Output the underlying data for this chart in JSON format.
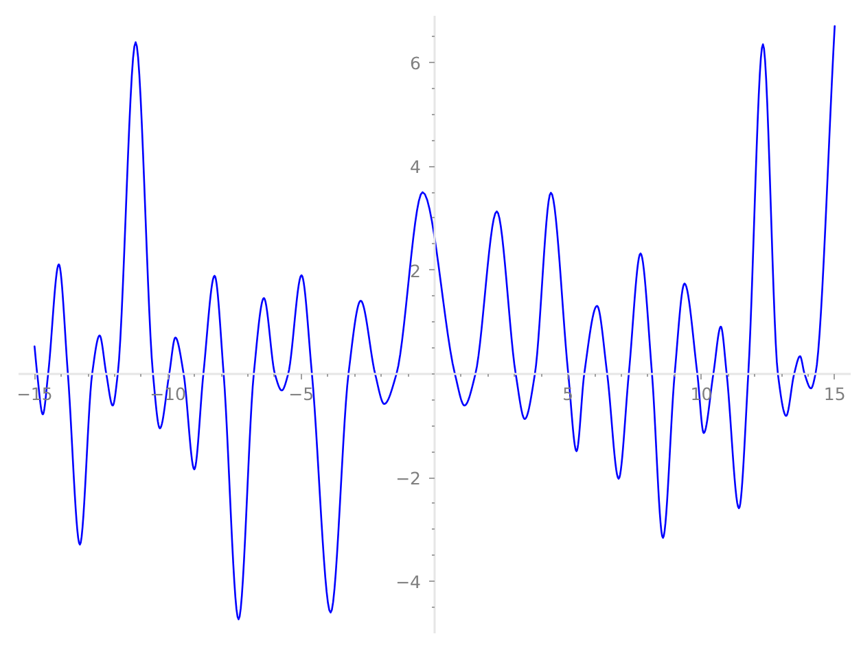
{
  "chart_data": {
    "type": "line",
    "xlim": [
      -15.6,
      15.6
    ],
    "ylim": [
      -5,
      6.9
    ],
    "xticks": [
      {
        "value": -15,
        "label": "−15"
      },
      {
        "value": -14,
        "label": null
      },
      {
        "value": -13,
        "label": null
      },
      {
        "value": -12,
        "label": null
      },
      {
        "value": -11,
        "label": null
      },
      {
        "value": -10,
        "label": "−10"
      },
      {
        "value": -9,
        "label": null
      },
      {
        "value": -8,
        "label": null
      },
      {
        "value": -7,
        "label": null
      },
      {
        "value": -6,
        "label": null
      },
      {
        "value": -5,
        "label": "−5"
      },
      {
        "value": -4,
        "label": null
      },
      {
        "value": -3,
        "label": null
      },
      {
        "value": -2,
        "label": null
      },
      {
        "value": -1,
        "label": null
      },
      {
        "value": 0,
        "label": null
      },
      {
        "value": 1,
        "label": null
      },
      {
        "value": 2,
        "label": null
      },
      {
        "value": 3,
        "label": null
      },
      {
        "value": 4,
        "label": null
      },
      5,
      {
        "value": 6,
        "label": null
      },
      {
        "value": 7,
        "label": null
      },
      {
        "value": 8,
        "label": null
      },
      {
        "value": 9,
        "label": null
      },
      10,
      {
        "value": 11,
        "label": null
      },
      {
        "value": 12,
        "label": null
      },
      {
        "value": 13,
        "label": null
      },
      {
        "value": 14,
        "label": null
      },
      15
    ],
    "yticks": [
      {
        "value": -4.5,
        "label": null
      },
      {
        "value": -4,
        "label": "−4"
      },
      {
        "value": -3.5,
        "label": null
      },
      {
        "value": -3,
        "label": null
      },
      {
        "value": -2.5,
        "label": null
      },
      {
        "value": -2,
        "label": "−2"
      },
      {
        "value": -1.5,
        "label": null
      },
      {
        "value": -1,
        "label": null
      },
      {
        "value": -0.5,
        "label": null
      },
      {
        "value": 0,
        "label": null
      },
      {
        "value": 0.5,
        "label": null
      },
      {
        "value": 1,
        "label": null
      },
      {
        "value": 1.5,
        "label": null
      },
      2,
      {
        "value": 2.5,
        "label": null
      },
      {
        "value": 3,
        "label": null
      },
      {
        "value": 3.5,
        "label": null
      },
      4,
      {
        "value": 4.5,
        "label": null
      },
      {
        "value": 5,
        "label": null
      },
      {
        "value": 5.5,
        "label": null
      },
      6,
      {
        "value": 6.5,
        "label": null
      }
    ],
    "series": [
      {
        "color": "#0000ff",
        "x": [
          -15,
          -14.9,
          -14.69,
          -14.49,
          -14.09,
          -13.75,
          -13.3,
          -12.84,
          -12.56,
          -12.31,
          -12.07,
          -11.88,
          -11.21,
          -10.56,
          -10.3,
          -9.95,
          -9.72,
          -9.41,
          -9.01,
          -8.67,
          -8.25,
          -7.91,
          -7.35,
          -6.78,
          -6.4,
          -5.99,
          -5.73,
          -5.49,
          -4.99,
          -4.6,
          -3.9,
          -3.23,
          -2.77,
          -2.23,
          -1.89,
          -1.43,
          -0.45,
          0.76,
          1.12,
          1.53,
          2.33,
          3.04,
          3.38,
          3.76,
          4.36,
          5.01,
          5.32,
          5.61,
          6.09,
          6.47,
          6.9,
          7.28,
          7.72,
          8.15,
          8.56,
          9.0,
          9.37,
          9.85,
          10.09,
          10.45,
          10.73,
          10.95,
          11.41,
          11.76,
          12.31,
          12.87,
          13.18,
          13.48,
          13.7,
          13.87,
          14.11,
          14.28,
          15
        ],
        "values": [
          0.53,
          0,
          -0.78,
          0,
          2.11,
          0,
          -3.29,
          0,
          0.74,
          0,
          -0.61,
          0,
          6.39,
          0,
          -1.05,
          0,
          0.7,
          0,
          -1.84,
          0,
          1.89,
          0,
          -4.73,
          0,
          1.46,
          0,
          -0.32,
          0,
          1.9,
          0,
          -4.6,
          0,
          1.41,
          0,
          -0.58,
          0,
          3.5,
          0,
          -0.61,
          0,
          3.13,
          0,
          -0.87,
          0,
          3.49,
          0,
          -1.49,
          0,
          1.31,
          0,
          -2.02,
          0,
          2.32,
          0,
          -3.16,
          0,
          1.74,
          0,
          -1.14,
          0,
          0.91,
          0,
          -2.59,
          0,
          6.35,
          0,
          -0.81,
          0,
          0.34,
          0,
          -0.28,
          0,
          6.7
        ]
      }
    ]
  }
}
